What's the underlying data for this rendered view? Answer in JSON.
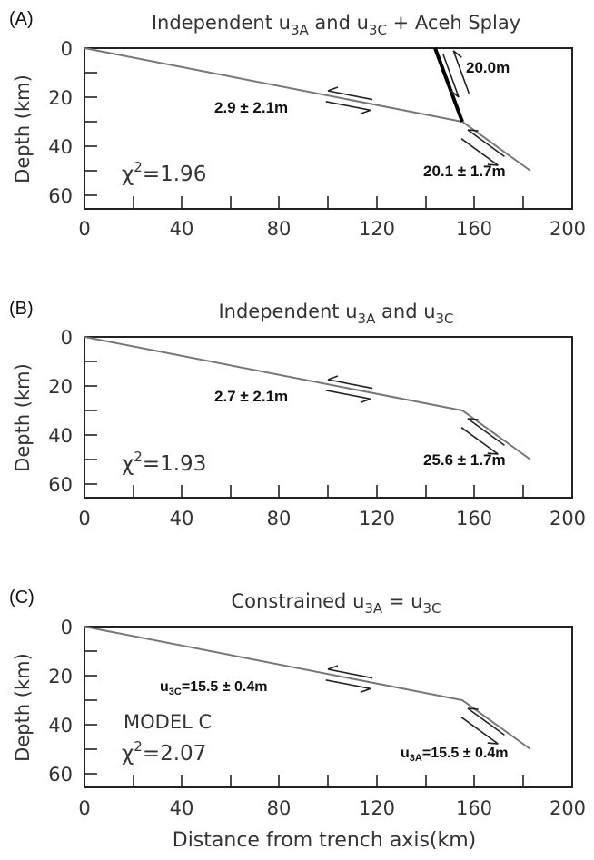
{
  "x_axis_label": "Distance from trench axis(km)",
  "y_axis_label": "Depth (km)",
  "x_ticks": [
    "0",
    "40",
    "80",
    "120",
    "160",
    "200"
  ],
  "y_ticks": [
    "0",
    "20",
    "40",
    "60"
  ],
  "panels": [
    {
      "letter": "(A)",
      "title_main": "Independent u",
      "title_sub1": "3A",
      "title_mid": " and u",
      "title_sub2": "3C",
      "title_tail": " + Aceh Splay",
      "chi_value": "=1.96",
      "model_label": "",
      "upper_slip": "2.9 ± 2.1m",
      "lower_slip": "20.1 ± 1.7m",
      "splay_slip": "20.0m"
    },
    {
      "letter": "(B)",
      "title_main": "Independent u",
      "title_sub1": "3A",
      "title_mid": " and u",
      "title_sub2": "3C",
      "title_tail": "",
      "chi_value": "=1.93",
      "model_label": "",
      "upper_slip": "2.7 ± 2.1m",
      "lower_slip": "25.6 ± 1.7m",
      "splay_slip": ""
    },
    {
      "letter": "(C)",
      "title_main": "Constrained u",
      "title_sub1": "3A",
      "title_mid": " = u",
      "title_sub2": "3C",
      "title_tail": "",
      "chi_value": "=2.07",
      "model_label": "MODEL C",
      "upper_slip_prefix": "u",
      "upper_slip_sub": "3C",
      "upper_slip": "=15.5 ± 0.4m",
      "lower_slip_prefix": "u",
      "lower_slip_sub": "3A",
      "lower_slip": "=15.5 ± 0.4m",
      "splay_slip": ""
    }
  ],
  "chi_symbol": "χ",
  "chi_exp": "2",
  "chart_data": {
    "type": "line",
    "xlim": [
      0,
      200
    ],
    "ylim": [
      0,
      65
    ],
    "y_inverted": true,
    "megathrust_profile": {
      "x": [
        0,
        155,
        183
      ],
      "y": [
        0,
        30,
        50
      ]
    },
    "splay_fault": {
      "x": [
        144,
        155
      ],
      "y": [
        0,
        30
      ]
    }
  }
}
